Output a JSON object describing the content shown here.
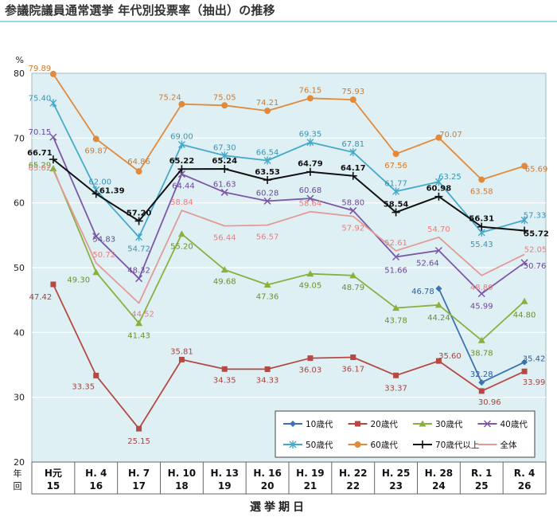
{
  "page_title": "参議院議員通常選挙 年代別投票率（抽出）の推移",
  "chart_data": {
    "type": "line",
    "title": "参議院議員通常選挙 年代別投票率（抽出）の推移",
    "ylabel": "%",
    "xlabel": "選挙期日",
    "x_row_labels": [
      "年",
      "回"
    ],
    "ylim": [
      20,
      80
    ],
    "yticks": [
      20,
      30,
      40,
      50,
      60,
      70,
      80
    ],
    "grid": true,
    "legend_position": "bottom-right",
    "categories": [
      {
        "year": "H元",
        "round": "15"
      },
      {
        "year": "H. 4",
        "round": "16"
      },
      {
        "year": "H. 7",
        "round": "17"
      },
      {
        "year": "H. 10",
        "round": "18"
      },
      {
        "year": "H. 13",
        "round": "19"
      },
      {
        "year": "H. 16",
        "round": "20"
      },
      {
        "year": "H. 19",
        "round": "21"
      },
      {
        "year": "H. 22",
        "round": "22"
      },
      {
        "year": "H. 25",
        "round": "23"
      },
      {
        "year": "H. 28",
        "round": "24"
      },
      {
        "year": "R. 1",
        "round": "25"
      },
      {
        "year": "R. 4",
        "round": "26"
      }
    ],
    "series": [
      {
        "name": "10歳代",
        "color": "#3a73b0",
        "marker": "diamond",
        "values": [
          null,
          null,
          null,
          null,
          null,
          null,
          null,
          null,
          null,
          46.78,
          32.28,
          35.42
        ],
        "labels": [
          "",
          "",
          "",
          "",
          "",
          "",
          "",
          "",
          "",
          "46.78",
          "32.28",
          "35.42"
        ]
      },
      {
        "name": "20歳代",
        "color": "#b54a44",
        "marker": "square",
        "values": [
          47.42,
          33.35,
          25.15,
          35.81,
          34.35,
          34.33,
          36.03,
          36.17,
          33.37,
          35.6,
          30.96,
          33.99
        ],
        "labels": [
          "47.42",
          "33.35",
          "25.15",
          "35.81",
          "34.35",
          "34.33",
          "36.03",
          "36.17",
          "33.37",
          "35.60",
          "30.96",
          "33.99"
        ]
      },
      {
        "name": "30歳代",
        "color": "#8ab040",
        "marker": "triangle",
        "values": [
          65.29,
          49.3,
          41.43,
          55.2,
          49.68,
          47.36,
          49.05,
          48.79,
          43.78,
          44.24,
          38.78,
          44.8
        ],
        "labels": [
          "65.29",
          "49.30",
          "41.43",
          "55.20",
          "49.68",
          "47.36",
          "49.05",
          "48.79",
          "43.78",
          "44.24",
          "38.78",
          "44.80"
        ]
      },
      {
        "name": "40歳代",
        "color": "#7b57a6",
        "marker": "x",
        "values": [
          70.15,
          54.83,
          48.32,
          64.44,
          61.63,
          60.28,
          60.68,
          58.8,
          51.66,
          52.64,
          45.99,
          50.76
        ],
        "labels": [
          "70.15",
          "54.83",
          "48.32",
          "64.44",
          "61.63",
          "60.28",
          "60.68",
          "58.80",
          "51.66",
          "52.64",
          "45.99",
          "50.76"
        ]
      },
      {
        "name": "50歳代",
        "color": "#45a9c9",
        "marker": "star",
        "values": [
          75.4,
          62.0,
          54.72,
          69.0,
          67.3,
          66.54,
          69.35,
          67.81,
          61.77,
          63.25,
          55.43,
          57.33
        ],
        "labels": [
          "75.40",
          "62.00",
          "54.72",
          "69.00",
          "67.30",
          "66.54",
          "69.35",
          "67.81",
          "61.77",
          "63.25",
          "55.43",
          "57.33"
        ]
      },
      {
        "name": "60歳代",
        "color": "#e28a3c",
        "marker": "circle",
        "values": [
          79.89,
          69.87,
          64.86,
          75.24,
          75.05,
          74.21,
          76.15,
          75.93,
          67.56,
          70.07,
          63.58,
          65.69
        ],
        "labels": [
          "79.89",
          "69.87",
          "64.86",
          "75.24",
          "75.05",
          "74.21",
          "76.15",
          "75.93",
          "67.56",
          "70.07",
          "63.58",
          "65.69"
        ]
      },
      {
        "name": "70歳代以上",
        "color": "#111111",
        "marker": "plus",
        "values": [
          66.71,
          61.39,
          57.2,
          65.22,
          65.24,
          63.53,
          64.79,
          64.17,
          58.54,
          60.98,
          56.31,
          55.72
        ],
        "labels": [
          "66.71",
          "61.39",
          "57.20",
          "65.22",
          "65.24",
          "63.53",
          "64.79",
          "64.17",
          "58.54",
          "60.98",
          "56.31",
          "55.72"
        ]
      },
      {
        "name": "全体",
        "color": "#e39a98",
        "marker": "none",
        "values": [
          65.02,
          50.72,
          44.52,
          58.84,
          56.44,
          56.57,
          58.64,
          57.92,
          52.61,
          54.7,
          48.8,
          52.05
        ],
        "labels": [
          "65.02",
          "50.72",
          "44.52",
          "58.84",
          "56.44",
          "56.57",
          "58.64",
          "57.92",
          "52.61",
          "54.70",
          "48.80",
          "52.05"
        ]
      }
    ]
  }
}
